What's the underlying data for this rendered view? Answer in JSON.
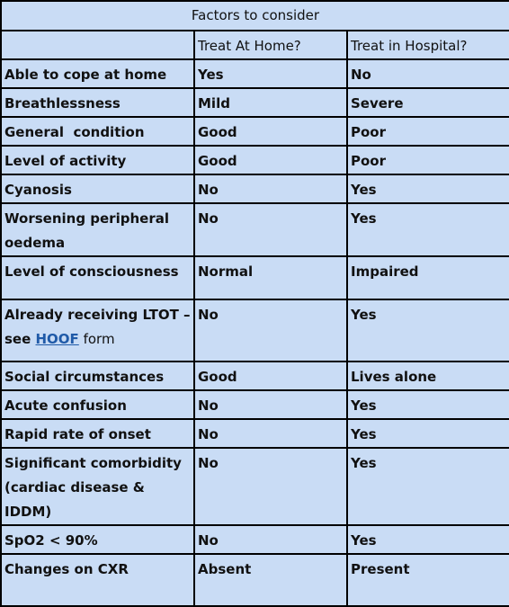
{
  "table": {
    "title": "Factors to consider",
    "headers": [
      "",
      "Treat At Home?",
      "Treat in Hospital?"
    ],
    "rows": [
      {
        "factor": "Able to cope at home",
        "home": "Yes",
        "hospital": "No"
      },
      {
        "factor": "Breathlessness",
        "home": "Mild",
        "hospital": "Severe"
      },
      {
        "factor": "General  condition",
        "home": "Good",
        "hospital": "Poor"
      },
      {
        "factor": "Level of activity",
        "home": "Good",
        "hospital": "Poor"
      },
      {
        "factor": "Cyanosis",
        "home": "No",
        "hospital": "Yes"
      },
      {
        "factor": "Worsening peripheral oedema",
        "home": "No",
        "hospital": "Yes"
      },
      {
        "factor": "Level of consciousness",
        "home": "Normal",
        "hospital": "Impaired"
      },
      {
        "factor_part1": "Already receiving LTOT – see ",
        "factor_link": "HOOF",
        "factor_part2": " form",
        "home": "No",
        "hospital": "Yes"
      },
      {
        "factor": "Social circumstances",
        "home": "Good",
        "hospital": "Lives alone"
      },
      {
        "factor": "Acute confusion",
        "home": "No",
        "hospital": "Yes"
      },
      {
        "factor": "Rapid rate of onset",
        "home": "No",
        "hospital": "Yes"
      },
      {
        "factor": "Significant comorbidity (cardiac disease & IDDM)",
        "home": "No",
        "hospital": "Yes"
      },
      {
        "factor": "SpO2 < 90%",
        "home": "No",
        "hospital": "Yes"
      },
      {
        "factor": "Changes on CXR",
        "home": "Absent",
        "hospital": "Present"
      }
    ]
  }
}
